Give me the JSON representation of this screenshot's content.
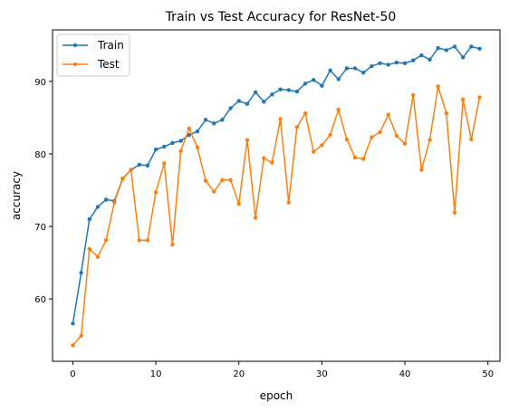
{
  "chart_data": {
    "type": "line",
    "title": "Train vs Test Accuracy for ResNet-50",
    "xlabel": "epoch",
    "ylabel": "accuracy",
    "xlim": [
      -2.45,
      51.45
    ],
    "ylim": [
      51.4,
      97.1
    ],
    "xticks": [
      0,
      10,
      20,
      30,
      40,
      50
    ],
    "yticks": [
      60,
      70,
      80,
      90
    ],
    "grid": false,
    "legend_position": "top-left",
    "x": [
      0,
      1,
      2,
      3,
      4,
      5,
      6,
      7,
      8,
      9,
      10,
      11,
      12,
      13,
      14,
      15,
      16,
      17,
      18,
      19,
      20,
      21,
      22,
      23,
      24,
      25,
      26,
      27,
      28,
      29,
      30,
      31,
      32,
      33,
      34,
      35,
      36,
      37,
      38,
      39,
      40,
      41,
      42,
      43,
      44,
      45,
      46,
      47,
      48,
      49
    ],
    "series": [
      {
        "name": "Train",
        "color": "#1f77b4",
        "values": [
          56.6,
          63.6,
          71.0,
          72.7,
          73.7,
          73.5,
          76.6,
          77.8,
          78.5,
          78.4,
          80.6,
          81.0,
          81.5,
          81.8,
          82.6,
          83.1,
          84.7,
          84.2,
          84.7,
          86.3,
          87.3,
          86.9,
          88.5,
          87.2,
          88.2,
          88.9,
          88.8,
          88.6,
          89.7,
          90.2,
          89.4,
          91.5,
          90.3,
          91.8,
          91.8,
          91.2,
          92.1,
          92.5,
          92.3,
          92.6,
          92.5,
          92.9,
          93.6,
          93.0,
          94.6,
          94.3,
          94.8,
          93.3,
          94.8,
          94.5
        ]
      },
      {
        "name": "Test",
        "color": "#ff7f0e",
        "values": [
          53.6,
          54.9,
          66.9,
          65.8,
          68.1,
          73.3,
          76.6,
          77.8,
          68.1,
          68.1,
          74.7,
          78.7,
          67.5,
          80.4,
          83.5,
          80.9,
          76.3,
          74.8,
          76.4,
          76.4,
          73.1,
          81.9,
          71.2,
          79.4,
          78.8,
          84.8,
          73.3,
          83.7,
          85.6,
          80.3,
          81.2,
          82.6,
          86.1,
          82.0,
          79.5,
          79.3,
          82.3,
          83.0,
          85.4,
          82.5,
          81.4,
          88.1,
          77.8,
          81.9,
          89.3,
          85.6,
          71.9,
          87.5,
          82.0,
          87.8
        ]
      }
    ]
  }
}
